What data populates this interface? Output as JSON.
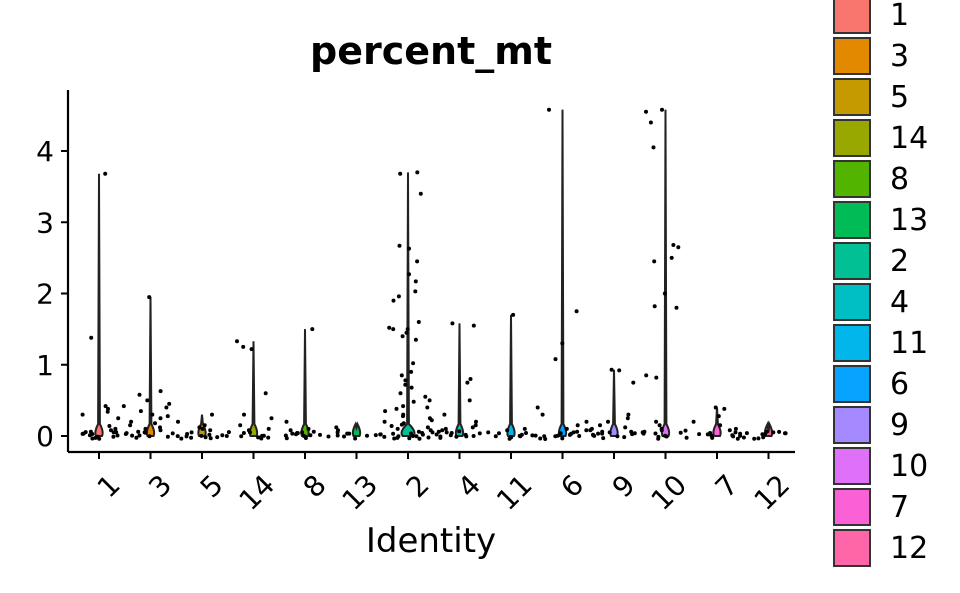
{
  "chart_data": {
    "type": "violin",
    "title": "percent_mt",
    "xlabel": "Identity",
    "ylabel": "",
    "ylim": [
      -0.2,
      4.85
    ],
    "yticks": [
      0,
      1,
      2,
      3,
      4
    ],
    "grid": false,
    "legend_position": "right",
    "categories": [
      "1",
      "3",
      "5",
      "14",
      "8",
      "13",
      "2",
      "4",
      "11",
      "6",
      "9",
      "10",
      "7",
      "12"
    ],
    "colors": [
      "#F8766D",
      "#E38900",
      "#C49A00",
      "#99A800",
      "#53B400",
      "#00BC56",
      "#00C094",
      "#00BFC4",
      "#00B6EB",
      "#06A4FF",
      "#A58AFF",
      "#DF70F8",
      "#FB61D7",
      "#FF66A8"
    ],
    "max_values": [
      3.68,
      1.95,
      0.3,
      1.33,
      1.5,
      0.12,
      3.7,
      1.58,
      1.7,
      4.58,
      0.93,
      4.58,
      0.4,
      0.05
    ],
    "series": [
      {
        "name": "1",
        "values": [
          3.68,
          1.38,
          0.42,
          0.42,
          0.38,
          0.34,
          0.3,
          0.25,
          0.14,
          0.1,
          0.08,
          0.06,
          0.05,
          0.04,
          0.03,
          0.02,
          0.02,
          0.01,
          0.01,
          0,
          0,
          0,
          0,
          0,
          0
        ]
      },
      {
        "name": "3",
        "values": [
          1.95,
          0.63,
          0.58,
          0.5,
          0.45,
          0.4,
          0.35,
          0.3,
          0.28,
          0.25,
          0.2,
          0.18,
          0.15,
          0.12,
          0.1,
          0.08,
          0.06,
          0.05,
          0.04,
          0.03,
          0.02,
          0.02,
          0.01,
          0,
          0,
          0,
          0
        ]
      },
      {
        "name": "5",
        "values": [
          0.3,
          0.2,
          0.15,
          0.12,
          0.1,
          0.08,
          0.05,
          0.04,
          0.03,
          0.02,
          0.01,
          0.01,
          0,
          0,
          0,
          0,
          0,
          0,
          0
        ]
      },
      {
        "name": "14",
        "values": [
          1.33,
          1.25,
          1.22,
          0.6,
          0.3,
          0.25,
          0.15,
          0.1,
          0.08,
          0.05,
          0.04,
          0.03,
          0.02,
          0.01,
          0,
          0,
          0,
          0,
          0
        ]
      },
      {
        "name": "8",
        "values": [
          1.5,
          0.2,
          0.1,
          0.08,
          0.06,
          0.05,
          0.04,
          0.03,
          0.02,
          0.01,
          0.01,
          0,
          0,
          0,
          0,
          0,
          0
        ]
      },
      {
        "name": "13",
        "values": [
          0.12,
          0.08,
          0.05,
          0.03,
          0.02,
          0.01,
          0,
          0,
          0,
          0,
          0,
          0
        ]
      },
      {
        "name": "2",
        "values": [
          3.7,
          3.68,
          3.4,
          2.67,
          2.63,
          2.45,
          2.27,
          2.17,
          2.03,
          1.96,
          1.9,
          1.6,
          1.52,
          1.5,
          1.5,
          1.45,
          1.4,
          1.35,
          1.02,
          0.9,
          0.85,
          0.78,
          0.72,
          0.68,
          0.6,
          0.55,
          0.5,
          0.48,
          0.42,
          0.4,
          0.38,
          0.35,
          0.3,
          0.28,
          0.25,
          0.22,
          0.2,
          0.18,
          0.16,
          0.14,
          0.12,
          0.1,
          0.08,
          0.06,
          0.05,
          0.04,
          0.03,
          0.02,
          0.01,
          0,
          0,
          0,
          0,
          0,
          0,
          0,
          0,
          0
        ]
      },
      {
        "name": "4",
        "values": [
          1.58,
          1.55,
          0.8,
          0.75,
          0.5,
          0.3,
          0.2,
          0.15,
          0.12,
          0.1,
          0.08,
          0.06,
          0.05,
          0.04,
          0.03,
          0.02,
          0.01,
          0,
          0,
          0,
          0,
          0,
          0,
          0
        ]
      },
      {
        "name": "11",
        "values": [
          1.7,
          0.1,
          0.08,
          0.05,
          0.03,
          0.02,
          0.01,
          0,
          0,
          0,
          0,
          0,
          0,
          0
        ]
      },
      {
        "name": "6",
        "values": [
          4.58,
          1.75,
          1.3,
          1.08,
          0.4,
          0.3,
          0.2,
          0.15,
          0.1,
          0.08,
          0.06,
          0.05,
          0.04,
          0.03,
          0.02,
          0.01,
          0,
          0,
          0,
          0,
          0,
          0
        ]
      },
      {
        "name": "9",
        "values": [
          0.93,
          0.92,
          0.75,
          0.3,
          0.25,
          0.2,
          0.15,
          0.12,
          0.1,
          0.08,
          0.06,
          0.05,
          0.04,
          0.03,
          0.02,
          0.01,
          0,
          0,
          0,
          0,
          0,
          0,
          0
        ]
      },
      {
        "name": "10",
        "values": [
          4.58,
          4.55,
          4.4,
          4.05,
          2.68,
          2.65,
          2.5,
          2.45,
          2.0,
          1.82,
          1.8,
          0.85,
          0.82,
          0.2,
          0.15,
          0.1,
          0.08,
          0.06,
          0.05,
          0.04,
          0.03,
          0.02,
          0.01,
          0,
          0,
          0,
          0,
          0
        ]
      },
      {
        "name": "7",
        "values": [
          0.4,
          0.38,
          0.28,
          0.2,
          0.15,
          0.1,
          0.08,
          0.05,
          0.04,
          0.03,
          0.02,
          0.01,
          0,
          0,
          0,
          0,
          0,
          0
        ]
      },
      {
        "name": "12",
        "values": [
          0.05,
          0.04,
          0.03,
          0.02,
          0.01,
          0.01,
          0,
          0,
          0,
          0,
          0,
          0
        ]
      }
    ]
  }
}
